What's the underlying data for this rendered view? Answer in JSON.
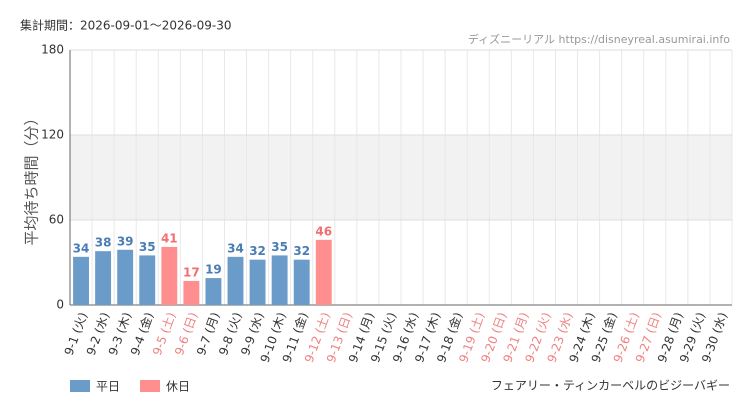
{
  "chart_data": {
    "type": "bar",
    "period": "集計期間：2026-09-01～2026-09-30",
    "source": "ディズニーリアル https://disneyreal.asumirai.info",
    "ylabel": "平均待ち時間（分）",
    "attraction": "フェアリー・ティンカーベルのビジーバギー",
    "categories": [
      "9-1 (火)",
      "9-2 (水)",
      "9-3 (木)",
      "9-4 (金)",
      "9-5 (土)",
      "9-6 (日)",
      "9-7 (月)",
      "9-8 (火)",
      "9-9 (水)",
      "9-10 (木)",
      "9-11 (金)",
      "9-12 (土)",
      "9-13 (日)",
      "9-14 (月)",
      "9-15 (火)",
      "9-16 (水)",
      "9-17 (木)",
      "9-18 (金)",
      "9-19 (土)",
      "9-20 (日)",
      "9-21 (月)",
      "9-22 (火)",
      "9-23 (水)",
      "9-24 (木)",
      "9-25 (金)",
      "9-26 (土)",
      "9-27 (日)",
      "9-28 (月)",
      "9-29 (火)",
      "9-30 (水)"
    ],
    "category_colors": [
      "#333",
      "#333",
      "#333",
      "#333",
      "#f08080",
      "#f08080",
      "#333",
      "#333",
      "#333",
      "#333",
      "#333",
      "#f08080",
      "#f08080",
      "#333",
      "#333",
      "#333",
      "#333",
      "#333",
      "#f08080",
      "#f08080",
      "#f08080",
      "#f08080",
      "#f08080",
      "#333",
      "#333",
      "#f08080",
      "#f08080",
      "#333",
      "#333",
      "#333"
    ],
    "series": [
      {
        "name": "平日",
        "color": "#6b9bc9",
        "label_color": "#4a7db5",
        "values": [
          34,
          38,
          39,
          35,
          null,
          null,
          19,
          34,
          32,
          35,
          32,
          null,
          null,
          null,
          null,
          null,
          null,
          null,
          null,
          null,
          null,
          null,
          null,
          null,
          null,
          null,
          null,
          null,
          null,
          null
        ]
      },
      {
        "name": "休日",
        "color": "#ff8f8f",
        "label_color": "#f07070",
        "values": [
          null,
          null,
          null,
          null,
          41,
          17,
          null,
          null,
          null,
          null,
          null,
          46,
          null,
          null,
          null,
          null,
          null,
          null,
          null,
          null,
          null,
          null,
          null,
          null,
          null,
          null,
          null,
          null,
          null,
          null
        ]
      }
    ],
    "ylim": [
      0,
      180
    ],
    "yticks": [
      0,
      60,
      120,
      180
    ],
    "grid": true
  }
}
